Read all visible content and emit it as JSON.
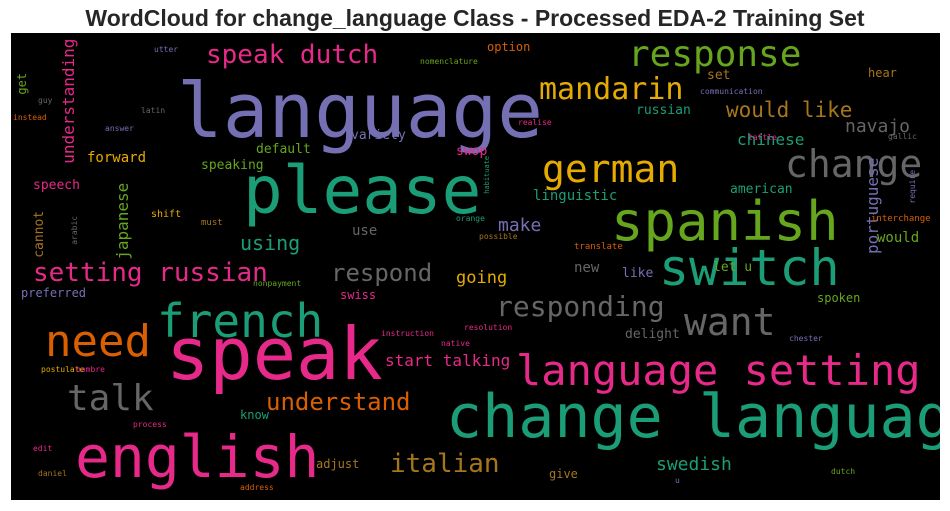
{
  "chart_data": {
    "type": "wordcloud",
    "title": "WordCloud for change_language Class - Processed EDA-2 Training Set",
    "background": "#000000",
    "palette": {
      "teal": "#1b9e77",
      "orange": "#d95f02",
      "purple": "#7570b3",
      "pink": "#e7298a",
      "green": "#66a61e",
      "gold": "#e6ab02",
      "brown": "#a6761d",
      "gray": "#666666"
    },
    "words": [
      {
        "text": "language",
        "color": "purple"
      },
      {
        "text": "speak",
        "color": "pink"
      },
      {
        "text": "please",
        "color": "teal"
      },
      {
        "text": "change language",
        "color": "teal"
      },
      {
        "text": "english",
        "color": "pink"
      },
      {
        "text": "spanish",
        "color": "green"
      },
      {
        "text": "switch",
        "color": "teal"
      },
      {
        "text": "language setting",
        "color": "pink"
      },
      {
        "text": "french",
        "color": "teal"
      },
      {
        "text": "response",
        "color": "green"
      },
      {
        "text": "change",
        "color": "gray"
      },
      {
        "text": "german",
        "color": "gold"
      },
      {
        "text": "need",
        "color": "orange"
      },
      {
        "text": "want",
        "color": "gray"
      },
      {
        "text": "talk",
        "color": "gray"
      },
      {
        "text": "speak dutch",
        "color": "pink"
      },
      {
        "text": "mandarin",
        "color": "gold"
      },
      {
        "text": "responding",
        "color": "gray"
      },
      {
        "text": "setting russian",
        "color": "pink"
      },
      {
        "text": "understand",
        "color": "orange"
      },
      {
        "text": "italian",
        "color": "brown"
      },
      {
        "text": "respond",
        "color": "gray"
      },
      {
        "text": "would like",
        "color": "brown"
      },
      {
        "text": "using",
        "color": "teal"
      },
      {
        "text": "start talking",
        "color": "pink"
      },
      {
        "text": "swedish",
        "color": "teal"
      },
      {
        "text": "navajo",
        "color": "gray"
      },
      {
        "text": "make",
        "color": "purple"
      },
      {
        "text": "going",
        "color": "gold"
      },
      {
        "text": "chinese",
        "color": "teal"
      },
      {
        "text": "japanese",
        "color": "green"
      },
      {
        "text": "portuguese",
        "color": "purple"
      },
      {
        "text": "understanding",
        "color": "pink"
      },
      {
        "text": "linguistic",
        "color": "teal"
      },
      {
        "text": "forward",
        "color": "gold"
      },
      {
        "text": "speaking",
        "color": "green"
      },
      {
        "text": "default",
        "color": "green"
      },
      {
        "text": "variety",
        "color": "purple"
      },
      {
        "text": "swop",
        "color": "pink"
      },
      {
        "text": "speech",
        "color": "pink"
      },
      {
        "text": "cannot",
        "color": "brown"
      },
      {
        "text": "use",
        "color": "gray"
      },
      {
        "text": "new",
        "color": "gray"
      },
      {
        "text": "like",
        "color": "purple"
      },
      {
        "text": "let u",
        "color": "green"
      },
      {
        "text": "spoken",
        "color": "green"
      },
      {
        "text": "would",
        "color": "green"
      },
      {
        "text": "american",
        "color": "teal"
      },
      {
        "text": "russian",
        "color": "teal"
      },
      {
        "text": "set",
        "color": "brown"
      },
      {
        "text": "hear",
        "color": "brown"
      },
      {
        "text": "option",
        "color": "orange"
      },
      {
        "text": "delight",
        "color": "gray"
      },
      {
        "text": "swiss",
        "color": "pink"
      },
      {
        "text": "adjust",
        "color": "brown"
      },
      {
        "text": "give",
        "color": "brown"
      },
      {
        "text": "know",
        "color": "teal"
      },
      {
        "text": "get",
        "color": "green"
      },
      {
        "text": "preferred",
        "color": "purple"
      },
      {
        "text": "shift",
        "color": "gold"
      },
      {
        "text": "must",
        "color": "brown"
      },
      {
        "text": "arabic",
        "color": "gray"
      },
      {
        "text": "orange",
        "color": "teal"
      },
      {
        "text": "possible",
        "color": "brown"
      },
      {
        "text": "translate",
        "color": "orange"
      },
      {
        "text": "interchange",
        "color": "orange"
      },
      {
        "text": "require",
        "color": "purple"
      },
      {
        "text": "gallic",
        "color": "gray"
      },
      {
        "text": "tattle",
        "color": "pink"
      },
      {
        "text": "communication",
        "color": "purple"
      },
      {
        "text": "habituate",
        "color": "teal"
      },
      {
        "text": "realise",
        "color": "pink"
      },
      {
        "text": "latin",
        "color": "gray"
      },
      {
        "text": "answer",
        "color": "purple"
      },
      {
        "text": "guy",
        "color": "gray"
      },
      {
        "text": "instead",
        "color": "orange"
      },
      {
        "text": "utter",
        "color": "purple"
      },
      {
        "text": "nomenclature",
        "color": "green"
      },
      {
        "text": "nonpayment",
        "color": "green"
      },
      {
        "text": "instruction",
        "color": "pink"
      },
      {
        "text": "resolution",
        "color": "pink"
      },
      {
        "text": "native",
        "color": "pink"
      },
      {
        "text": "chester",
        "color": "purple"
      },
      {
        "text": "postulate",
        "color": "gold"
      },
      {
        "text": "hombre",
        "color": "pink"
      },
      {
        "text": "process",
        "color": "pink"
      },
      {
        "text": "edit",
        "color": "pink"
      },
      {
        "text": "daniel",
        "color": "brown"
      },
      {
        "text": "address",
        "color": "orange"
      },
      {
        "text": "dutch",
        "color": "green"
      },
      {
        "text": "u",
        "color": "purple"
      }
    ]
  }
}
